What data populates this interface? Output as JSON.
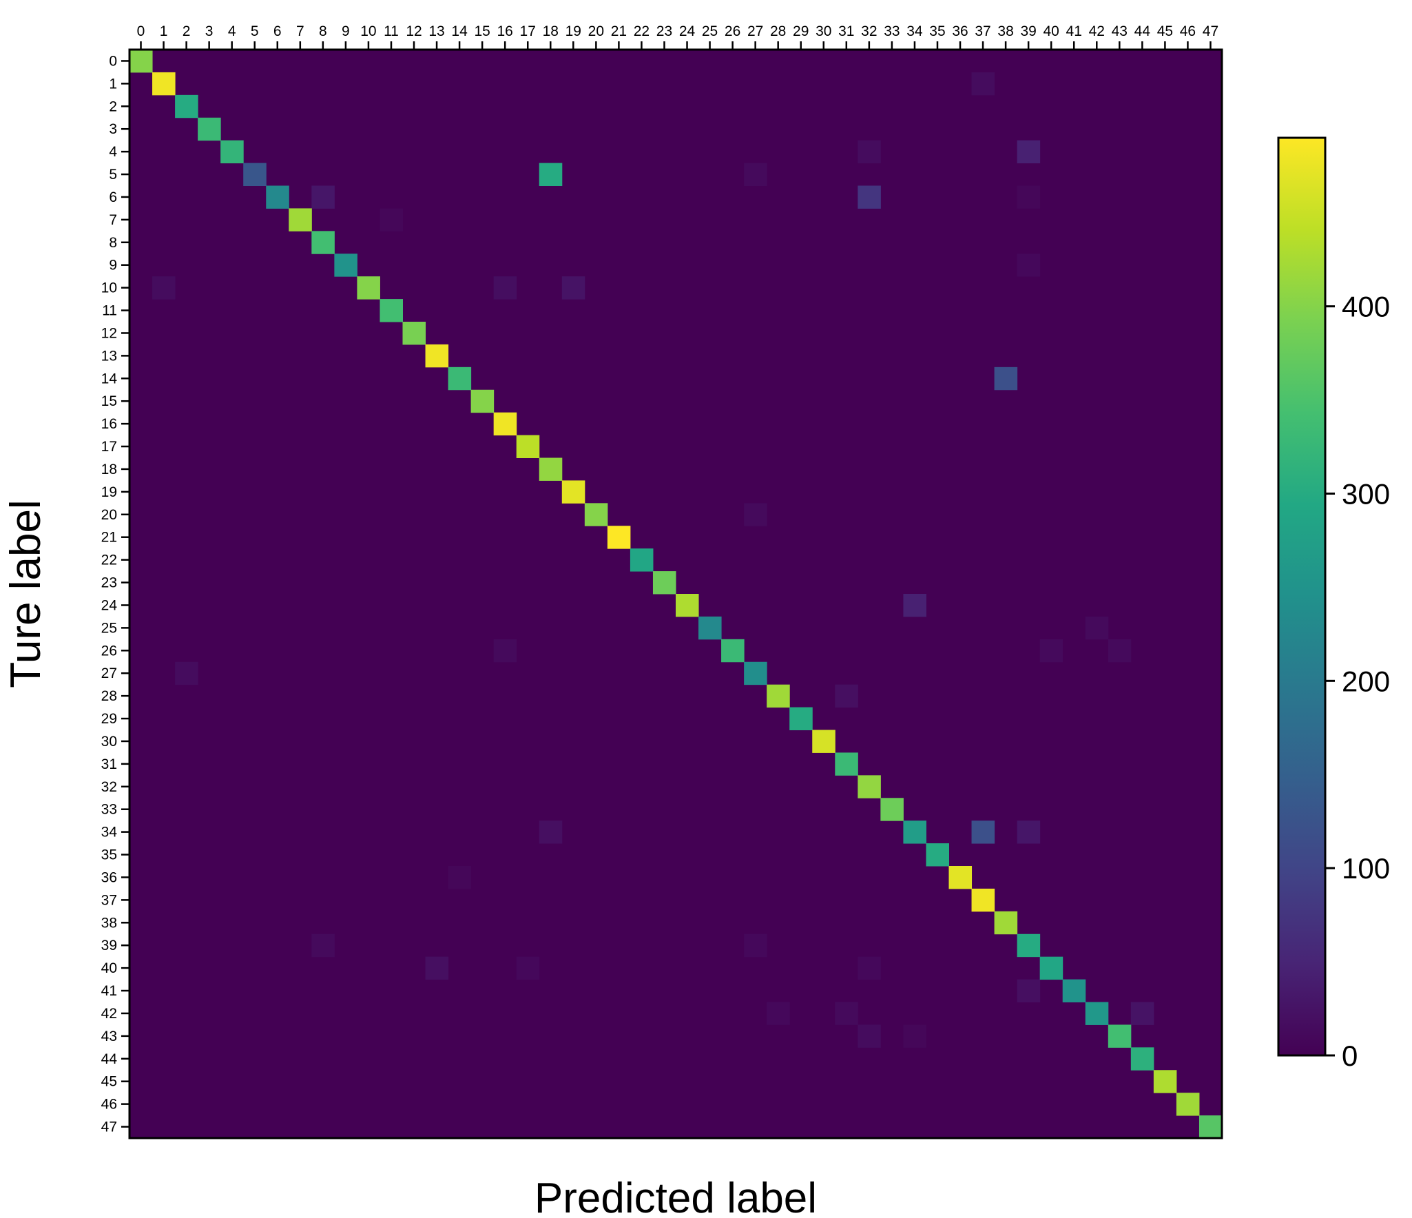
{
  "chart_data": {
    "type": "heatmap",
    "title": "",
    "xlabel": "Predicted label",
    "ylabel": "Ture label",
    "x_tick_labels": [
      "0",
      "1",
      "2",
      "3",
      "4",
      "5",
      "6",
      "7",
      "8",
      "9",
      "10",
      "11",
      "12",
      "13",
      "14",
      "15",
      "16",
      "17",
      "18",
      "19",
      "20",
      "21",
      "22",
      "23",
      "24",
      "25",
      "26",
      "27",
      "28",
      "29",
      "30",
      "31",
      "32",
      "33",
      "34",
      "35",
      "36",
      "37",
      "38",
      "39",
      "40",
      "41",
      "42",
      "43",
      "44",
      "45",
      "46",
      "47"
    ],
    "y_tick_labels": [
      "0",
      "1",
      "2",
      "3",
      "4",
      "5",
      "6",
      "7",
      "8",
      "9",
      "10",
      "11",
      "12",
      "13",
      "14",
      "15",
      "16",
      "17",
      "18",
      "19",
      "20",
      "21",
      "22",
      "23",
      "24",
      "25",
      "26",
      "27",
      "28",
      "29",
      "30",
      "31",
      "32",
      "33",
      "34",
      "35",
      "36",
      "37",
      "38",
      "39",
      "40",
      "41",
      "42",
      "43",
      "44",
      "45",
      "46",
      "47"
    ],
    "diagonal": [
      400,
      480,
      300,
      330,
      320,
      130,
      230,
      420,
      340,
      250,
      400,
      340,
      390,
      480,
      330,
      400,
      480,
      440,
      410,
      470,
      400,
      490,
      290,
      380,
      430,
      230,
      330,
      240,
      420,
      300,
      460,
      330,
      410,
      380,
      270,
      300,
      470,
      480,
      420,
      300,
      290,
      250,
      260,
      340,
      310,
      430,
      420,
      360
    ],
    "off_diagonal": [
      {
        "row": 1,
        "col": 37,
        "value": 15
      },
      {
        "row": 4,
        "col": 32,
        "value": 15
      },
      {
        "row": 4,
        "col": 39,
        "value": 45
      },
      {
        "row": 5,
        "col": 18,
        "value": 300
      },
      {
        "row": 5,
        "col": 27,
        "value": 12
      },
      {
        "row": 6,
        "col": 8,
        "value": 30
      },
      {
        "row": 6,
        "col": 32,
        "value": 75
      },
      {
        "row": 6,
        "col": 39,
        "value": 8
      },
      {
        "row": 7,
        "col": 11,
        "value": 8
      },
      {
        "row": 9,
        "col": 39,
        "value": 10
      },
      {
        "row": 10,
        "col": 1,
        "value": 15
      },
      {
        "row": 10,
        "col": 16,
        "value": 18
      },
      {
        "row": 10,
        "col": 19,
        "value": 25
      },
      {
        "row": 14,
        "col": 38,
        "value": 120
      },
      {
        "row": 20,
        "col": 27,
        "value": 12
      },
      {
        "row": 24,
        "col": 34,
        "value": 45
      },
      {
        "row": 25,
        "col": 42,
        "value": 12
      },
      {
        "row": 26,
        "col": 16,
        "value": 12
      },
      {
        "row": 26,
        "col": 40,
        "value": 12
      },
      {
        "row": 26,
        "col": 43,
        "value": 12
      },
      {
        "row": 27,
        "col": 2,
        "value": 15
      },
      {
        "row": 28,
        "col": 31,
        "value": 20
      },
      {
        "row": 34,
        "col": 18,
        "value": 20
      },
      {
        "row": 34,
        "col": 37,
        "value": 120
      },
      {
        "row": 34,
        "col": 39,
        "value": 30
      },
      {
        "row": 36,
        "col": 14,
        "value": 8
      },
      {
        "row": 39,
        "col": 8,
        "value": 12
      },
      {
        "row": 39,
        "col": 27,
        "value": 10
      },
      {
        "row": 40,
        "col": 13,
        "value": 20
      },
      {
        "row": 40,
        "col": 17,
        "value": 10
      },
      {
        "row": 40,
        "col": 32,
        "value": 10
      },
      {
        "row": 41,
        "col": 39,
        "value": 20
      },
      {
        "row": 42,
        "col": 28,
        "value": 10
      },
      {
        "row": 42,
        "col": 31,
        "value": 12
      },
      {
        "row": 42,
        "col": 44,
        "value": 25
      },
      {
        "row": 43,
        "col": 32,
        "value": 15
      },
      {
        "row": 43,
        "col": 34,
        "value": 8
      }
    ],
    "background_value": 0,
    "colorscale": "viridis",
    "colorbar": {
      "range": [
        0,
        490
      ],
      "ticks": [
        0,
        100,
        200,
        300,
        400
      ]
    }
  }
}
